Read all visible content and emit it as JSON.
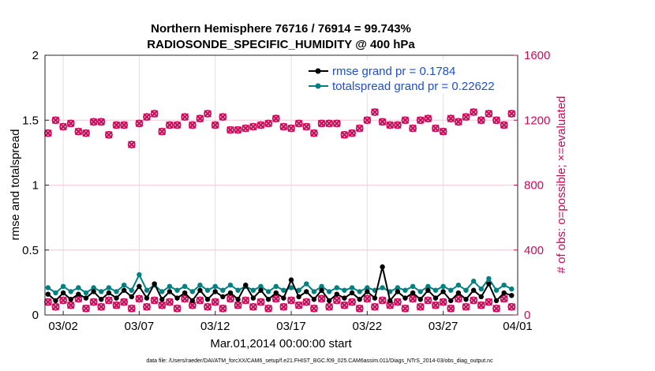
{
  "chart_data": {
    "type": "line",
    "title_line1": "Northern Hemisphere 76716 / 76914 = 99.743%",
    "title_line2": "RADIOSONDE_SPECIFIC_HUMIDITY @ 400 hPa",
    "xlabel": "Mar.01,2014 00:00:00 start",
    "ylabel_left": "rmse and totalspread",
    "ylabel_right": "# of obs: o=possible; ×=evaluated",
    "xlim": [
      0.3,
      31.4
    ],
    "ylim_left": [
      0,
      2
    ],
    "ylim_right": [
      0,
      1600
    ],
    "x_ticks": [
      {
        "value": 1.5,
        "label": "03/02"
      },
      {
        "value": 6.5,
        "label": "03/07"
      },
      {
        "value": 11.5,
        "label": "03/12"
      },
      {
        "value": 16.5,
        "label": "03/17"
      },
      {
        "value": 21.5,
        "label": "03/22"
      },
      {
        "value": 26.5,
        "label": "03/27"
      },
      {
        "value": 31.5,
        "label": "04/01"
      }
    ],
    "y_left_ticks": [
      {
        "value": 0,
        "label": "0"
      },
      {
        "value": 0.5,
        "label": "0.5"
      },
      {
        "value": 1,
        "label": "1"
      },
      {
        "value": 1.5,
        "label": "1.5"
      },
      {
        "value": 2,
        "label": "2"
      }
    ],
    "y_right_ticks": [
      {
        "value": 0,
        "label": "0"
      },
      {
        "value": 400,
        "label": "400"
      },
      {
        "value": 800,
        "label": "800"
      },
      {
        "value": 1200,
        "label": "1200"
      },
      {
        "value": 1600,
        "label": "1600"
      }
    ],
    "grid": true,
    "legend_position": "top-right",
    "series": [
      {
        "name": "rmse grand pr = 0.1784",
        "axis": "left",
        "color": "#000000",
        "x": [
          0.5,
          1.0,
          1.5,
          2.0,
          2.5,
          3.0,
          3.5,
          4.0,
          4.5,
          5.0,
          5.5,
          6.0,
          6.5,
          7.0,
          7.5,
          8.0,
          8.5,
          9.0,
          9.5,
          10.0,
          10.5,
          11.0,
          11.5,
          12.0,
          12.5,
          13.0,
          13.5,
          14.0,
          14.5,
          15.0,
          15.5,
          16.0,
          16.5,
          17.0,
          17.5,
          18.0,
          18.5,
          19.0,
          19.5,
          20.0,
          20.5,
          21.0,
          21.5,
          22.0,
          22.5,
          23.0,
          23.5,
          24.0,
          24.5,
          25.0,
          25.5,
          26.0,
          26.5,
          27.0,
          27.5,
          28.0,
          28.5,
          29.0,
          29.5,
          30.0,
          30.5,
          31.0
        ],
        "values": [
          0.16,
          0.11,
          0.17,
          0.12,
          0.16,
          0.13,
          0.18,
          0.12,
          0.17,
          0.13,
          0.19,
          0.14,
          0.22,
          0.13,
          0.24,
          0.12,
          0.18,
          0.13,
          0.17,
          0.11,
          0.19,
          0.12,
          0.18,
          0.14,
          0.17,
          0.12,
          0.23,
          0.13,
          0.19,
          0.12,
          0.17,
          0.13,
          0.27,
          0.14,
          0.18,
          0.12,
          0.19,
          0.11,
          0.16,
          0.13,
          0.17,
          0.12,
          0.18,
          0.13,
          0.37,
          0.11,
          0.18,
          0.13,
          0.17,
          0.12,
          0.19,
          0.13,
          0.18,
          0.11,
          0.17,
          0.12,
          0.19,
          0.14,
          0.24,
          0.11,
          0.17,
          0.15
        ]
      },
      {
        "name": "totalspread grand pr = 0.22622",
        "axis": "left",
        "color": "#008080",
        "x": [
          0.5,
          1.0,
          1.5,
          2.0,
          2.5,
          3.0,
          3.5,
          4.0,
          4.5,
          5.0,
          5.5,
          6.0,
          6.5,
          7.0,
          7.5,
          8.0,
          8.5,
          9.0,
          9.5,
          10.0,
          10.5,
          11.0,
          11.5,
          12.0,
          12.5,
          13.0,
          13.5,
          14.0,
          14.5,
          15.0,
          15.5,
          16.0,
          16.5,
          17.0,
          17.5,
          18.0,
          18.5,
          19.0,
          19.5,
          20.0,
          20.5,
          21.0,
          21.5,
          22.0,
          22.5,
          23.0,
          23.5,
          24.0,
          24.5,
          25.0,
          25.5,
          26.0,
          26.5,
          27.0,
          27.5,
          28.0,
          28.5,
          29.0,
          29.5,
          30.0,
          30.5,
          31.0
        ],
        "values": [
          0.21,
          0.17,
          0.22,
          0.18,
          0.21,
          0.17,
          0.21,
          0.18,
          0.21,
          0.18,
          0.23,
          0.19,
          0.31,
          0.19,
          0.23,
          0.18,
          0.22,
          0.19,
          0.22,
          0.18,
          0.23,
          0.19,
          0.22,
          0.19,
          0.23,
          0.19,
          0.22,
          0.19,
          0.22,
          0.18,
          0.22,
          0.19,
          0.21,
          0.19,
          0.24,
          0.18,
          0.22,
          0.18,
          0.21,
          0.19,
          0.21,
          0.18,
          0.21,
          0.19,
          0.21,
          0.18,
          0.21,
          0.19,
          0.22,
          0.18,
          0.22,
          0.19,
          0.22,
          0.19,
          0.23,
          0.19,
          0.26,
          0.2,
          0.28,
          0.19,
          0.23,
          0.2
        ]
      },
      {
        "name": "possible",
        "axis": "right",
        "color": "#cc0a5a",
        "marker": "o",
        "x": [
          0.5,
          1.0,
          1.5,
          2.0,
          2.5,
          3.0,
          3.5,
          4.0,
          4.5,
          5.0,
          5.5,
          6.0,
          6.5,
          7.0,
          7.5,
          8.0,
          8.5,
          9.0,
          9.5,
          10.0,
          10.5,
          11.0,
          11.5,
          12.0,
          12.5,
          13.0,
          13.5,
          14.0,
          14.5,
          15.0,
          15.5,
          16.0,
          16.5,
          17.0,
          17.5,
          18.0,
          18.5,
          19.0,
          19.5,
          20.0,
          20.5,
          21.0,
          21.5,
          22.0,
          22.5,
          23.0,
          23.5,
          24.0,
          24.5,
          25.0,
          25.5,
          26.0,
          26.5,
          27.0,
          27.5,
          28.0,
          28.5,
          29.0,
          29.5,
          30.0,
          30.5,
          31.0,
          0.5,
          1.0,
          1.5,
          2.0,
          2.5,
          3.0,
          3.5,
          4.0,
          4.5,
          5.0,
          5.5,
          6.0,
          6.5,
          7.0,
          7.5,
          8.0,
          8.5,
          9.0,
          9.5,
          10.0,
          10.5,
          11.0,
          11.5,
          12.0,
          12.5,
          13.0,
          13.5,
          14.0,
          14.5,
          15.0,
          15.5,
          16.0,
          16.5,
          17.0,
          17.5,
          18.0,
          18.5,
          19.0,
          19.5,
          20.0,
          20.5,
          21.0,
          21.5,
          22.0,
          22.5,
          23.0,
          23.5,
          24.0,
          24.5,
          25.0,
          25.5,
          26.0,
          26.5,
          27.0,
          27.5,
          28.0,
          28.5,
          29.0,
          29.5,
          30.0,
          30.5,
          31.0
        ],
        "values": [
          1120,
          1200,
          1160,
          1180,
          1130,
          1120,
          1190,
          1190,
          1110,
          1170,
          1170,
          1050,
          1180,
          1220,
          1240,
          1130,
          1170,
          1170,
          1220,
          1170,
          1210,
          1240,
          1170,
          1220,
          1140,
          1140,
          1150,
          1160,
          1170,
          1180,
          1210,
          1160,
          1150,
          1180,
          1160,
          1120,
          1180,
          1180,
          1180,
          1110,
          1120,
          1150,
          1200,
          1250,
          1190,
          1170,
          1170,
          1200,
          1150,
          1200,
          1210,
          1150,
          1130,
          1210,
          1190,
          1220,
          1250,
          1200,
          1240,
          1200,
          1170,
          1240,
          80,
          50,
          90,
          60,
          100,
          40,
          80,
          50,
          90,
          60,
          80,
          40,
          100,
          50,
          90,
          60,
          80,
          40,
          100,
          60,
          90,
          50,
          80,
          40,
          100,
          60,
          90,
          50,
          80,
          40,
          100,
          50,
          90,
          60,
          80,
          40,
          100,
          50,
          90,
          60,
          80,
          40,
          100,
          50,
          90,
          60,
          80,
          40,
          100,
          50,
          90,
          60,
          80,
          40,
          100,
          50,
          90,
          60,
          80,
          40,
          100,
          50
        ]
      },
      {
        "name": "evaluated",
        "axis": "right",
        "color": "#cc0a5a",
        "marker": "x",
        "x": [
          0.5,
          1.0,
          1.5,
          2.0,
          2.5,
          3.0,
          3.5,
          4.0,
          4.5,
          5.0,
          5.5,
          6.0,
          6.5,
          7.0,
          7.5,
          8.0,
          8.5,
          9.0,
          9.5,
          10.0,
          10.5,
          11.0,
          11.5,
          12.0,
          12.5,
          13.0,
          13.5,
          14.0,
          14.5,
          15.0,
          15.5,
          16.0,
          16.5,
          17.0,
          17.5,
          18.0,
          18.5,
          19.0,
          19.5,
          20.0,
          20.5,
          21.0,
          21.5,
          22.0,
          22.5,
          23.0,
          23.5,
          24.0,
          24.5,
          25.0,
          25.5,
          26.0,
          26.5,
          27.0,
          27.5,
          28.0,
          28.5,
          29.0,
          29.5,
          30.0,
          30.5,
          31.0,
          0.5,
          1.0,
          1.5,
          2.0,
          2.5,
          3.0,
          3.5,
          4.0,
          4.5,
          5.0,
          5.5,
          6.0,
          6.5,
          7.0,
          7.5,
          8.0,
          8.5,
          9.0,
          9.5,
          10.0,
          10.5,
          11.0,
          11.5,
          12.0,
          12.5,
          13.0,
          13.5,
          14.0,
          14.5,
          15.0,
          15.5,
          16.0,
          16.5,
          17.0,
          17.5,
          18.0,
          18.5,
          19.0,
          19.5,
          20.0,
          20.5,
          21.0,
          21.5,
          22.0,
          22.5,
          23.0,
          23.5,
          24.0,
          24.5,
          25.0,
          25.5,
          26.0,
          26.5,
          27.0,
          27.5,
          28.0,
          28.5,
          29.0,
          29.5,
          30.0,
          30.5,
          31.0
        ],
        "values": [
          1120,
          1200,
          1160,
          1180,
          1130,
          1120,
          1190,
          1190,
          1110,
          1170,
          1170,
          1050,
          1180,
          1220,
          1240,
          1130,
          1170,
          1170,
          1220,
          1170,
          1210,
          1240,
          1170,
          1220,
          1140,
          1140,
          1150,
          1160,
          1170,
          1180,
          1210,
          1160,
          1150,
          1180,
          1160,
          1120,
          1180,
          1180,
          1180,
          1110,
          1120,
          1150,
          1200,
          1250,
          1190,
          1170,
          1170,
          1200,
          1150,
          1200,
          1210,
          1150,
          1130,
          1210,
          1190,
          1220,
          1250,
          1200,
          1240,
          1200,
          1170,
          1240,
          80,
          50,
          90,
          60,
          100,
          40,
          80,
          50,
          90,
          60,
          80,
          40,
          100,
          50,
          90,
          60,
          80,
          40,
          100,
          60,
          90,
          50,
          80,
          40,
          100,
          60,
          90,
          50,
          80,
          40,
          100,
          50,
          90,
          60,
          80,
          40,
          100,
          50,
          90,
          60,
          80,
          40,
          100,
          50,
          90,
          60,
          80,
          40,
          100,
          50,
          90,
          60,
          80,
          40,
          100,
          50,
          90,
          60,
          80,
          40,
          100,
          50
        ]
      }
    ],
    "footer": "data file: /Users/raeder/DAI/ATM_forcXX/CAM6_setup/f.e21.FHIST_BGC.f09_025.CAM6assim.011/Diags_NTrS_2014-03/obs_diag_output.nc"
  }
}
